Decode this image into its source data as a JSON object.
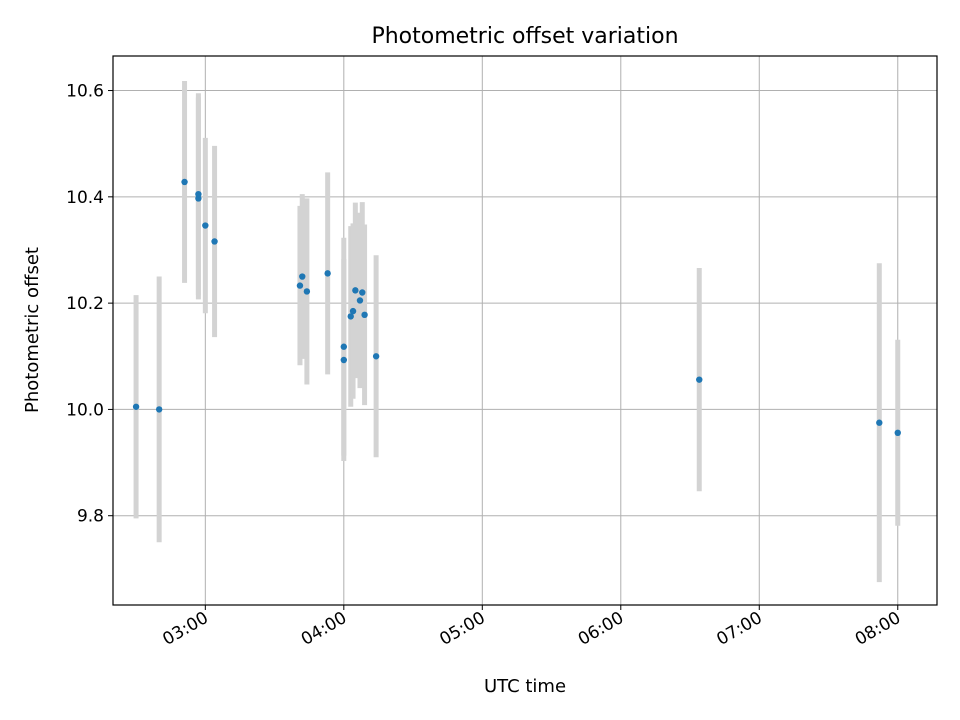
{
  "chart_data": {
    "type": "scatter",
    "title": "Photometric offset variation",
    "xlabel": "UTC time",
    "ylabel": "Photometric offset",
    "xlim": [
      "02:20",
      "08:17"
    ],
    "ylim": [
      9.632,
      10.665
    ],
    "x_tick_labels": [
      "03:00",
      "04:00",
      "05:00",
      "06:00",
      "07:00",
      "08:00"
    ],
    "y_tick_labels": [
      "9.8",
      "10.0",
      "10.2",
      "10.4",
      "10.6"
    ],
    "grid": true,
    "colors": {
      "point": "#1f77b4",
      "errorbar": "#d3d3d3",
      "grid": "#b0b0b0"
    },
    "points": [
      {
        "t": "02:30",
        "y": 10.005,
        "err": 0.21
      },
      {
        "t": "02:40",
        "y": 10.0,
        "err": 0.25
      },
      {
        "t": "02:51",
        "y": 10.428,
        "err": 0.19
      },
      {
        "t": "02:57",
        "y": 10.397,
        "err": 0.19
      },
      {
        "t": "02:57",
        "y": 10.405,
        "err": 0.19
      },
      {
        "t": "03:00",
        "y": 10.346,
        "err": 0.165
      },
      {
        "t": "03:04",
        "y": 10.316,
        "err": 0.18
      },
      {
        "t": "03:41",
        "y": 10.233,
        "err": 0.15
      },
      {
        "t": "03:42",
        "y": 10.25,
        "err": 0.155
      },
      {
        "t": "03:44",
        "y": 10.222,
        "err": 0.175
      },
      {
        "t": "03:53",
        "y": 10.256,
        "err": 0.19
      },
      {
        "t": "04:00",
        "y": 10.093,
        "err": 0.19
      },
      {
        "t": "04:00",
        "y": 10.118,
        "err": 0.205
      },
      {
        "t": "04:03",
        "y": 10.175,
        "err": 0.17
      },
      {
        "t": "04:04",
        "y": 10.185,
        "err": 0.165
      },
      {
        "t": "04:05",
        "y": 10.224,
        "err": 0.165
      },
      {
        "t": "04:07",
        "y": 10.205,
        "err": 0.165
      },
      {
        "t": "04:08",
        "y": 10.22,
        "err": 0.17
      },
      {
        "t": "04:09",
        "y": 10.178,
        "err": 0.17
      },
      {
        "t": "04:14",
        "y": 10.1,
        "err": 0.19
      },
      {
        "t": "06:34",
        "y": 10.056,
        "err": 0.21
      },
      {
        "t": "07:52",
        "y": 9.975,
        "err": 0.3
      },
      {
        "t": "08:00",
        "y": 9.956,
        "err": 0.175
      }
    ]
  }
}
